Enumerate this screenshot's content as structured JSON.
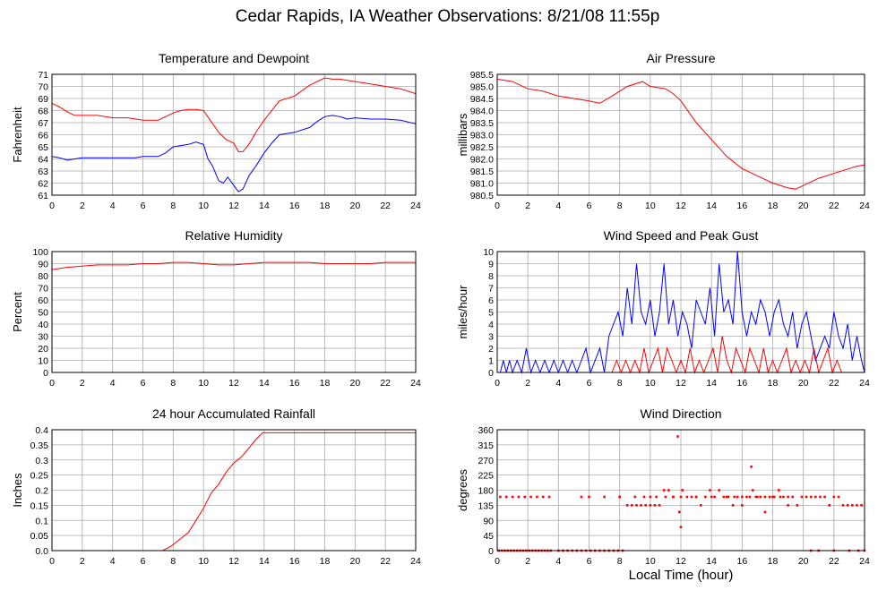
{
  "page": {
    "title": "Cedar Rapids, IA Weather Observations: 8/21/08 11:55p",
    "xlabel": "Local Time (hour)"
  },
  "colors": {
    "series1": "#ff0000",
    "series2": "#0000ff",
    "grid": "#aaaaaa"
  },
  "chart_data": [
    {
      "id": "temp",
      "type": "line",
      "title": "Temperature and Dewpoint",
      "xlabel": "",
      "ylabel": "Fahrenheit",
      "xlim": [
        0,
        24
      ],
      "ylim": [
        61,
        71
      ],
      "xticks": [
        0,
        2,
        4,
        6,
        8,
        10,
        12,
        14,
        16,
        18,
        20,
        22,
        24
      ],
      "yticks": [
        "61",
        "62",
        "63",
        "64",
        "65",
        "66",
        "67",
        "68",
        "69",
        "70",
        "71"
      ],
      "grid": true,
      "series": [
        {
          "color": "#ff0000",
          "x": [
            0,
            0.5,
            1,
            1.5,
            2,
            3,
            4,
            5,
            6,
            7,
            7.5,
            8,
            8.5,
            9,
            9.5,
            10,
            10.5,
            11,
            11.5,
            12,
            12.3,
            12.6,
            13,
            13.5,
            14,
            15,
            16,
            17,
            18,
            18.5,
            19,
            20,
            21,
            22,
            23,
            24
          ],
          "y": [
            68.6,
            68.3,
            67.9,
            67.6,
            67.6,
            67.6,
            67.4,
            67.4,
            67.2,
            67.2,
            67.5,
            67.8,
            68.0,
            68.1,
            68.1,
            68.0,
            67.1,
            66.2,
            65.6,
            65.3,
            64.6,
            64.6,
            65.2,
            66.3,
            67.2,
            68.8,
            69.2,
            70.1,
            70.7,
            70.6,
            70.6,
            70.4,
            70.2,
            70.0,
            69.8,
            69.4
          ]
        },
        {
          "color": "#0000ff",
          "x": [
            0,
            0.5,
            1,
            1.5,
            2,
            3,
            4,
            5,
            5.5,
            6,
            7,
            7.5,
            8,
            9,
            9.5,
            10,
            10.3,
            10.6,
            11,
            11.3,
            11.6,
            12,
            12.3,
            12.6,
            13,
            13.5,
            14,
            14.5,
            15,
            16,
            17,
            17.5,
            18,
            18.5,
            19,
            19.5,
            20,
            21,
            22,
            23,
            24
          ],
          "y": [
            64.2,
            64.1,
            63.9,
            64.0,
            64.1,
            64.1,
            64.1,
            64.1,
            64.1,
            64.2,
            64.2,
            64.5,
            65.0,
            65.2,
            65.4,
            65.2,
            64.0,
            63.4,
            62.2,
            62.0,
            62.5,
            61.8,
            61.3,
            61.5,
            62.6,
            63.5,
            64.5,
            65.3,
            66.0,
            66.2,
            66.6,
            67.1,
            67.5,
            67.6,
            67.5,
            67.3,
            67.4,
            67.3,
            67.3,
            67.2,
            66.9
          ]
        }
      ]
    },
    {
      "id": "pressure",
      "type": "line",
      "title": "Air Pressure",
      "xlabel": "",
      "ylabel": "millibars",
      "xlim": [
        0,
        24
      ],
      "ylim": [
        980.5,
        985.5
      ],
      "xticks": [
        0,
        2,
        4,
        6,
        8,
        10,
        12,
        14,
        16,
        18,
        20,
        22,
        24
      ],
      "yticks": [
        "980.5",
        "981.0",
        "981.5",
        "982.0",
        "982.5",
        "983.0",
        "983.5",
        "984.0",
        "984.5",
        "985.0",
        "985.5"
      ],
      "grid": true,
      "series": [
        {
          "color": "#ff0000",
          "x": [
            0,
            1,
            2,
            3,
            4,
            5,
            6,
            6.7,
            7.5,
            8.5,
            9.5,
            10,
            11,
            11.5,
            12,
            13,
            14,
            15,
            16,
            17,
            18,
            19,
            19.5,
            20,
            21,
            22,
            23,
            23.5,
            24
          ],
          "y": [
            985.3,
            985.2,
            984.9,
            984.8,
            984.6,
            984.5,
            984.4,
            984.3,
            984.6,
            985.0,
            985.2,
            985.0,
            984.9,
            984.7,
            984.4,
            983.5,
            982.8,
            982.1,
            981.6,
            981.3,
            981.0,
            980.8,
            980.75,
            980.9,
            981.2,
            981.4,
            981.6,
            981.7,
            981.75
          ]
        }
      ]
    },
    {
      "id": "humidity",
      "type": "line",
      "title": "Relative Humidity",
      "xlabel": "",
      "ylabel": "Percent",
      "xlim": [
        0,
        24
      ],
      "ylim": [
        0,
        100
      ],
      "xticks": [
        0,
        2,
        4,
        6,
        8,
        10,
        12,
        14,
        16,
        18,
        20,
        22,
        24
      ],
      "yticks": [
        "0",
        "10",
        "20",
        "30",
        "40",
        "50",
        "60",
        "70",
        "80",
        "90",
        "100"
      ],
      "grid": true,
      "series": [
        {
          "color": "#ff0000",
          "x": [
            0,
            0.5,
            1,
            2,
            3,
            4,
            5,
            6,
            7,
            8,
            9,
            10,
            11,
            12,
            13,
            14,
            15,
            16,
            17,
            18,
            19,
            20,
            21,
            22,
            23,
            24
          ],
          "y": [
            85,
            86,
            87,
            88,
            89,
            89,
            89,
            90,
            90,
            91,
            91,
            90,
            89,
            89,
            90,
            91,
            91,
            91,
            91,
            90,
            90,
            90,
            90,
            91,
            91,
            91
          ]
        }
      ]
    },
    {
      "id": "wind",
      "type": "line",
      "title": "Wind Speed and Peak Gust",
      "xlabel": "",
      "ylabel": "miles/hour",
      "xlim": [
        0,
        24
      ],
      "ylim": [
        0,
        10
      ],
      "xticks": [
        0,
        2,
        4,
        6,
        8,
        10,
        12,
        14,
        16,
        18,
        20,
        22,
        24
      ],
      "yticks": [
        "0",
        "1",
        "2",
        "3",
        "4",
        "5",
        "6",
        "7",
        "8",
        "9",
        "10"
      ],
      "grid": true,
      "series": [
        {
          "color": "#0000ff",
          "x": [
            0.2,
            0.4,
            0.6,
            0.8,
            1.0,
            1.3,
            1.6,
            1.9,
            2.2,
            2.5,
            2.8,
            3.1,
            3.4,
            3.7,
            4.0,
            4.3,
            4.6,
            4.9,
            5.2,
            5.5,
            5.8,
            6.1,
            6.4,
            6.7,
            7.0,
            7.3,
            7.6,
            7.9,
            8.2,
            8.5,
            8.8,
            9.1,
            9.4,
            9.7,
            10.0,
            10.3,
            10.6,
            10.9,
            11.2,
            11.5,
            11.8,
            12.1,
            12.4,
            12.7,
            13.0,
            13.3,
            13.6,
            13.9,
            14.2,
            14.5,
            14.8,
            15.1,
            15.4,
            15.7,
            16.0,
            16.3,
            16.6,
            16.9,
            17.2,
            17.5,
            17.8,
            18.1,
            18.4,
            18.7,
            19.0,
            19.3,
            19.6,
            19.9,
            20.2,
            20.5,
            20.8,
            21.1,
            21.4,
            21.7,
            22.0,
            22.3,
            22.6,
            22.9,
            23.2,
            23.5,
            23.8,
            24.0
          ],
          "y": [
            0,
            1,
            0,
            1,
            0,
            1,
            0,
            2,
            0,
            1,
            0,
            1,
            0,
            1,
            0,
            1,
            0,
            1,
            0,
            1,
            2,
            0,
            1,
            2,
            0,
            3,
            4,
            5,
            3,
            7,
            4,
            9,
            5,
            4,
            6,
            3,
            5,
            9,
            4,
            6,
            3,
            5,
            4,
            2,
            6,
            5,
            4,
            7,
            3,
            9,
            5,
            6,
            4,
            10,
            5,
            3,
            5,
            4,
            6,
            5,
            3,
            5,
            6,
            4,
            3,
            5,
            2,
            4,
            5,
            3,
            1,
            2,
            3,
            2,
            5,
            3,
            2,
            4,
            1,
            3,
            1,
            0
          ]
        },
        {
          "color": "#ff0000",
          "x": [
            7.5,
            7.8,
            8.1,
            8.4,
            8.7,
            9.0,
            9.3,
            9.6,
            9.9,
            10.2,
            10.5,
            10.8,
            11.1,
            11.4,
            11.7,
            12.0,
            12.3,
            12.6,
            12.9,
            13.2,
            13.5,
            13.8,
            14.1,
            14.4,
            14.7,
            15.0,
            15.3,
            15.6,
            15.9,
            16.2,
            16.5,
            16.8,
            17.1,
            17.4,
            17.7,
            18.0,
            18.3,
            18.6,
            18.9,
            19.2,
            19.5,
            19.8,
            20.1,
            20.4,
            20.7,
            21.0,
            21.3,
            21.6,
            21.9,
            22.2,
            22.5
          ],
          "y": [
            0,
            1,
            0,
            1,
            0,
            1,
            0,
            2,
            0,
            1,
            2,
            0,
            2,
            1,
            0,
            1,
            0,
            2,
            0,
            1,
            0,
            1,
            2,
            0,
            3,
            1,
            0,
            2,
            1,
            0,
            2,
            1,
            0,
            2,
            0,
            1,
            0,
            1,
            2,
            0,
            1,
            0,
            1,
            0,
            2,
            0,
            1,
            2,
            0,
            1,
            0
          ]
        }
      ]
    },
    {
      "id": "rain",
      "type": "line",
      "title": "24 hour Accumulated Rainfall",
      "xlabel": "",
      "ylabel": "Inches",
      "xlim": [
        0,
        24
      ],
      "ylim": [
        0,
        0.4
      ],
      "xticks": [
        0,
        2,
        4,
        6,
        8,
        10,
        12,
        14,
        16,
        18,
        20,
        22,
        24
      ],
      "yticks": [
        "0.0",
        "0.05",
        "0.1",
        "0.15",
        "0.2",
        "0.25",
        "0.3",
        "0.35",
        "0.4"
      ],
      "grid": true,
      "series": [
        {
          "color": "#ff0000",
          "x": [
            0,
            7.3,
            7.7,
            8.0,
            8.5,
            9.0,
            9.5,
            10.0,
            10.5,
            11.0,
            11.5,
            12.0,
            12.5,
            13.0,
            13.5,
            13.9,
            14.5,
            24
          ],
          "y": [
            0,
            0,
            0.01,
            0.02,
            0.04,
            0.06,
            0.1,
            0.14,
            0.19,
            0.22,
            0.26,
            0.29,
            0.31,
            0.34,
            0.37,
            0.39,
            0.39,
            0.39
          ]
        }
      ]
    },
    {
      "id": "direction",
      "type": "scatter",
      "title": "Wind Direction",
      "xlabel": "",
      "ylabel": "degrees",
      "xlim": [
        0,
        24
      ],
      "ylim": [
        0,
        360
      ],
      "xticks": [
        0,
        2,
        4,
        6,
        8,
        10,
        12,
        14,
        16,
        18,
        20,
        22,
        24
      ],
      "yticks": [
        "0",
        "45",
        "90",
        "135",
        "180",
        "225",
        "270",
        "315",
        "360"
      ],
      "grid": true,
      "series": [
        {
          "color": "#ff0000",
          "x": [
            0.1,
            0.3,
            0.5,
            0.7,
            0.9,
            1.1,
            1.3,
            1.5,
            1.7,
            1.9,
            2.1,
            2.3,
            2.5,
            2.7,
            2.9,
            3.1,
            3.3,
            3.5,
            4.0,
            4.3,
            4.6,
            4.9,
            5.2,
            5.5,
            5.8,
            6.1,
            6.4,
            6.7,
            7.0,
            7.3,
            7.6,
            7.9,
            8.2,
            8.5,
            8.8,
            9.1,
            9.4,
            9.7,
            10.0,
            10.3,
            10.6,
            10.9,
            11.2,
            11.5,
            11.8,
            11.9,
            12.0,
            12.1,
            12.4,
            12.7,
            13.0,
            13.3,
            13.6,
            13.9,
            14.2,
            14.5,
            14.8,
            15.1,
            15.4,
            15.7,
            16.0,
            16.3,
            16.6,
            16.7,
            16.9,
            17.2,
            17.5,
            17.8,
            18.1,
            18.4,
            18.7,
            19.0,
            19.3,
            19.6,
            19.9,
            20.2,
            20.5,
            20.8,
            21.1,
            21.4,
            21.7,
            22.0,
            22.3,
            22.6,
            22.9,
            23.2,
            23.5,
            23.8,
            0.2,
            0.6,
            1.0,
            1.4,
            1.8,
            2.2,
            2.6,
            3.0,
            3.4,
            5.5,
            6.0,
            7.0,
            8.0,
            9.0,
            9.6,
            10.0,
            10.4,
            11.0,
            11.5,
            12.0,
            13.0,
            14.0,
            15.0,
            15.5,
            16.0,
            16.5,
            17.0,
            17.5,
            18.0,
            18.5,
            19.0,
            20.5,
            21.0,
            22.0,
            23.0,
            23.6,
            24.0
          ],
          "y": [
            0,
            0,
            0,
            0,
            0,
            0,
            0,
            0,
            0,
            0,
            0,
            0,
            0,
            0,
            0,
            0,
            0,
            0,
            0,
            0,
            0,
            0,
            0,
            0,
            0,
            0,
            0,
            0,
            0,
            0,
            0,
            0,
            0,
            135,
            135,
            135,
            135,
            135,
            135,
            135,
            135,
            180,
            180,
            160,
            340,
            115,
            70,
            180,
            160,
            160,
            160,
            135,
            160,
            180,
            160,
            180,
            160,
            160,
            135,
            160,
            135,
            160,
            250,
            180,
            160,
            160,
            115,
            160,
            160,
            180,
            160,
            135,
            160,
            135,
            160,
            160,
            160,
            160,
            160,
            160,
            135,
            160,
            160,
            135,
            135,
            135,
            135,
            135,
            160,
            160,
            160,
            160,
            160,
            160,
            160,
            160,
            160,
            160,
            160,
            160,
            160,
            160,
            160,
            160,
            160,
            160,
            160,
            160,
            160,
            160,
            160,
            160,
            160,
            160,
            160,
            160,
            160,
            160,
            160,
            0,
            0,
            0,
            0,
            0,
            0
          ]
        }
      ]
    }
  ]
}
